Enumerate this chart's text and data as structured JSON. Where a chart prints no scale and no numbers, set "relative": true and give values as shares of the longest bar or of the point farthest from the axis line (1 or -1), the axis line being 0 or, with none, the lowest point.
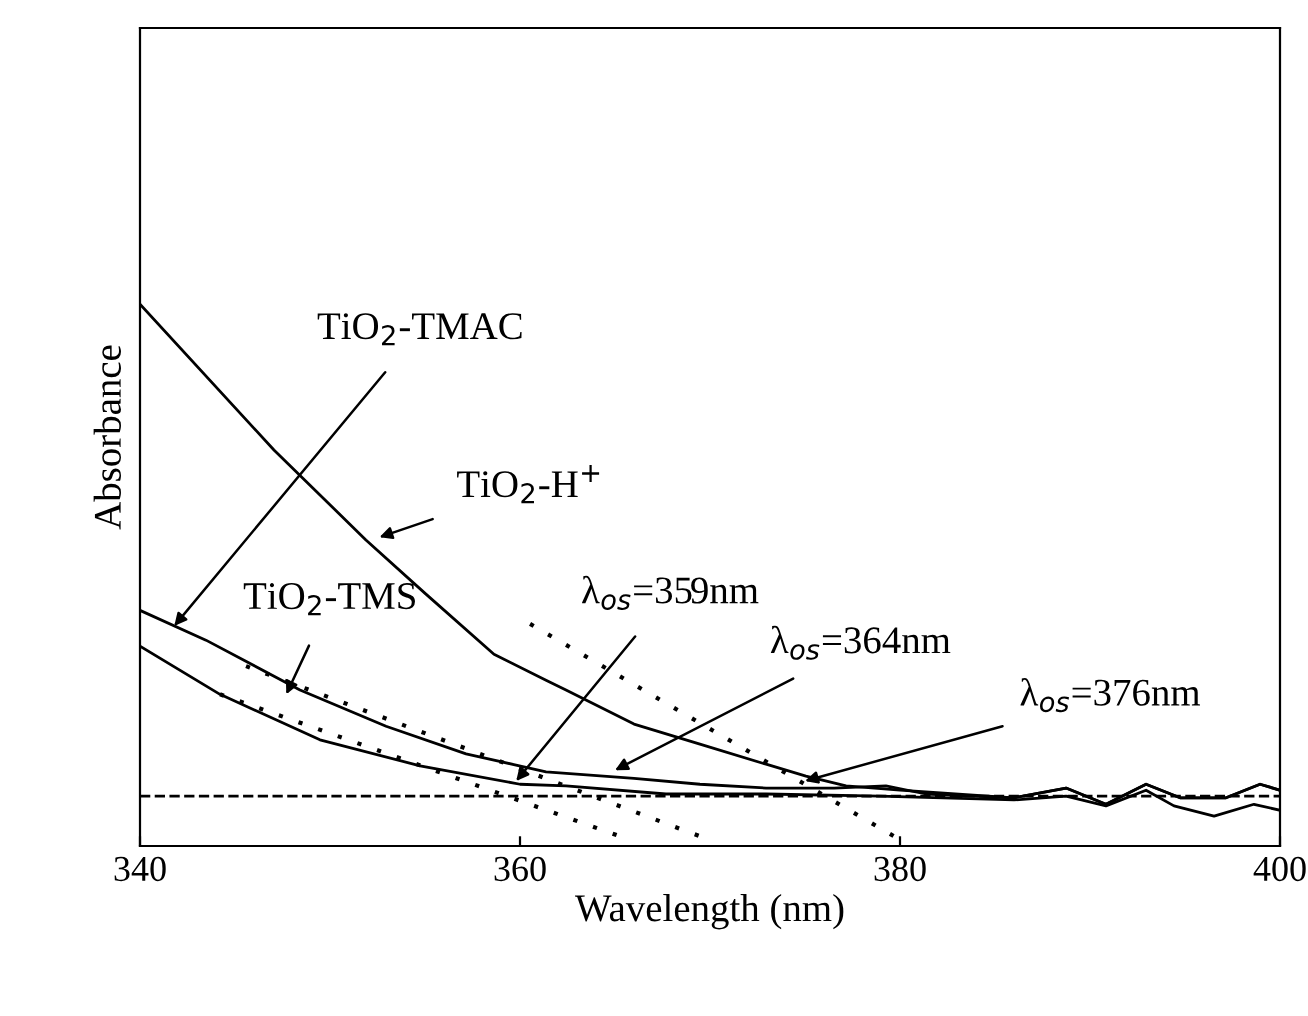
{
  "chart_data": {
    "type": "line",
    "xlabel": "Wavelength (nm)",
    "ylabel": "Absorbance",
    "relative": true,
    "xlim": [
      340,
      400
    ],
    "xticks": [
      340,
      360,
      380,
      400
    ],
    "tick_labels": "x",
    "grid": false,
    "legend": false,
    "line_style": "solid",
    "marker": "none",
    "series": [
      {
        "color": "#000000",
        "x": [
          340,
          347.05,
          351.89,
          355.05,
          358.63,
          361.37,
          362.42,
          366.0,
          369.47,
          372.95,
          375.05,
          377.16,
          380.0,
          386.0,
          388.74,
          390.84,
          392.95,
          394.74,
          397.16,
          398.95,
          400
        ],
        "values": [
          1.0,
          0.731,
          0.565,
          0.465,
          0.354,
          0.306,
          0.288,
          0.225,
          0.188,
          0.151,
          0.129,
          0.111,
          0.103,
          0.089,
          0.107,
          0.077,
          0.114,
          0.089,
          0.089,
          0.114,
          0.103
        ]
      },
      {
        "color": "#000000",
        "x": [
          340,
          343.47,
          348.42,
          352.95,
          357.16,
          361.37,
          366.0,
          369.47,
          372.95,
          376.53,
          379.26,
          381.37,
          386.0,
          388.74,
          390.84,
          392.95,
          394.74,
          397.16,
          398.95,
          400
        ],
        "values": [
          0.435,
          0.38,
          0.288,
          0.221,
          0.17,
          0.137,
          0.125,
          0.114,
          0.107,
          0.107,
          0.111,
          0.096,
          0.089,
          0.107,
          0.077,
          0.114,
          0.089,
          0.089,
          0.114,
          0.103
        ]
      },
      {
        "color": "#000000",
        "x": [
          340,
          344.21,
          349.47,
          354.74,
          360.0,
          362.42,
          367.68,
          372.95,
          378.95,
          386.0,
          388.74,
          390.84,
          392.95,
          394.42,
          396.53,
          398.63,
          400
        ],
        "values": [
          0.369,
          0.28,
          0.196,
          0.148,
          0.114,
          0.111,
          0.096,
          0.096,
          0.092,
          0.085,
          0.092,
          0.074,
          0.103,
          0.074,
          0.055,
          0.077,
          0.066
        ]
      },
      {
        "color": "#000000",
        "line_style": "dotted",
        "x": [
          360.53,
          379.68
        ],
        "values": [
          0.41,
          0.018
        ]
      },
      {
        "color": "#000000",
        "line_style": "dotted",
        "x": [
          345.58,
          369.47
        ],
        "values": [
          0.332,
          0.018
        ]
      },
      {
        "color": "#000000",
        "line_style": "dotted",
        "x": [
          344.21,
          365.26
        ],
        "values": [
          0.28,
          0.018
        ]
      }
    ],
    "ref_lines": [
      {
        "axis": "y",
        "value": 0.092,
        "line_style": "dashed",
        "color": "#000000"
      }
    ],
    "annotations": [
      {
        "text": "TiO$_{2}$-TMAC",
        "x": 341.8,
        "y": 0.406
      },
      {
        "text": "TiO$_{2}$-H$^{+}$",
        "x": 352.6,
        "y": 0.57
      },
      {
        "text": "TiO$_{2}$-TMS",
        "x": 347.7,
        "y": 0.28
      },
      {
        "text": "λ$_{os}$=359nm",
        "x": 359.8,
        "y": 0.12
      },
      {
        "text": "λ$_{os}$=364nm",
        "x": 365.0,
        "y": 0.14
      },
      {
        "text": "λ$_{os}$=376nm",
        "x": 375.0,
        "y": 0.12
      }
    ]
  }
}
